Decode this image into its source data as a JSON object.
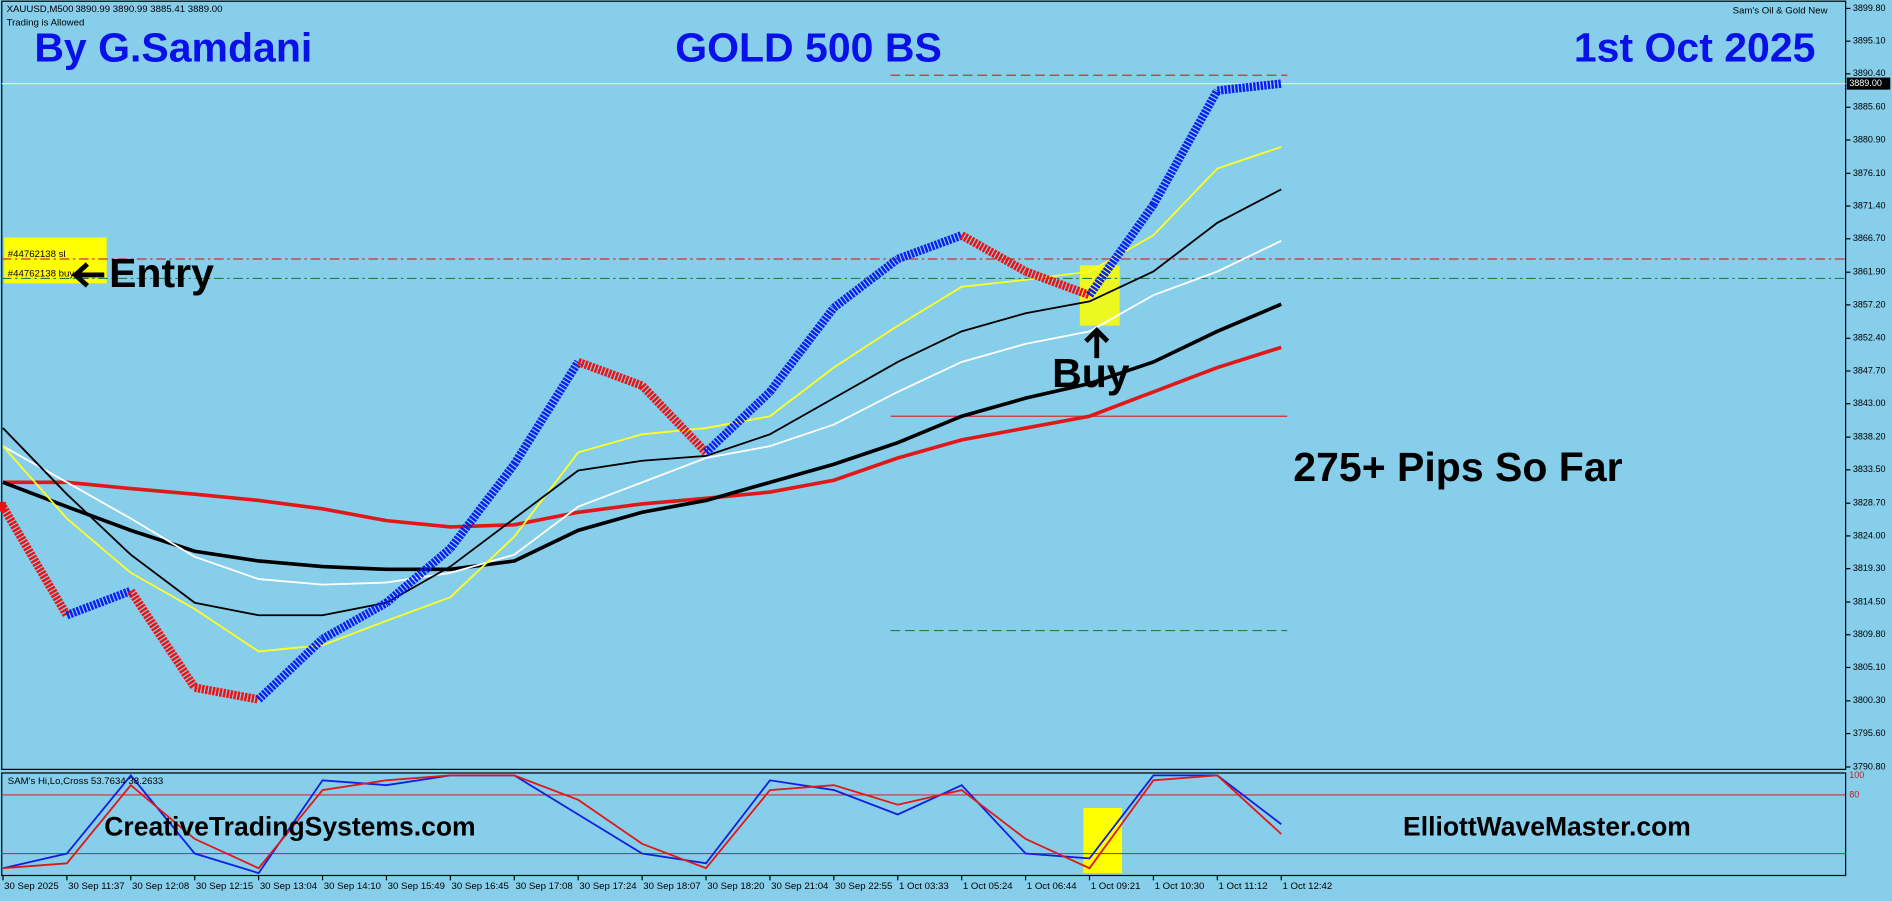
{
  "chart_data": {
    "type": "bar",
    "title": "GOLD 500 BS",
    "header": {
      "symbol": "XAUUSD,M500",
      "ohlc": "3890.99 3890.99 3885.41 3889.00",
      "status": "Trading is Allowed",
      "indicator": "Sam's Oil & Gold New"
    },
    "annotations": {
      "author": "By G.Samdani",
      "date": "1st Oct 2025",
      "entry": "Entry",
      "buy": "Buy",
      "result": "275+ Pips So Far",
      "site_left": "CreativeTradingSystems.com",
      "site_right": "ElliottWaveMaster.com",
      "order_sl": "#44762138 sl",
      "order_buy": "#44762138 buy"
    },
    "categories": [
      "30 Sep 2025",
      "30 Sep 11:37",
      "30 Sep 12:08",
      "30 Sep 12:15",
      "30 Sep 13:04",
      "30 Sep 14:10",
      "30 Sep 15:49",
      "30 Sep 16:45",
      "30 Sep 17:08",
      "30 Sep 17:24",
      "30 Sep 18:07",
      "30 Sep 18:20",
      "30 Sep 21:04",
      "30 Sep 22:55",
      "1 Oct 03:33",
      "1 Oct 05:24",
      "1 Oct 06:44",
      "1 Oct 09:21",
      "1 Oct 10:30",
      "1 Oct 11:12",
      "1 Oct 12:42"
    ],
    "price": {
      "up_color": "#0a1ef0",
      "down_color": "#f01010",
      "values": [
        3828.2,
        3812.6,
        3816.1,
        3802.2,
        3800.5,
        3809.2,
        3814.4,
        3822.2,
        3834.3,
        3849.0,
        3845.6,
        3836.0,
        3844.7,
        3856.8,
        3863.8,
        3867.2,
        3862.0,
        3858.6,
        3871.6,
        3888.0,
        3889.0
      ]
    },
    "series": [
      {
        "color": "#e01818",
        "width": 3,
        "values": [
          3831.7,
          3831.7,
          3830.8,
          3830.0,
          3829.1,
          3827.9,
          3826.2,
          3825.3,
          3825.6,
          3827.4,
          3828.6,
          3829.4,
          3830.3,
          3832.0,
          3835.2,
          3837.8,
          3839.5,
          3841.2,
          3844.7,
          3848.2,
          3851.1
        ]
      },
      {
        "color": "#000000",
        "width": 3,
        "values": [
          3831.7,
          3828.2,
          3824.8,
          3821.8,
          3820.4,
          3819.6,
          3819.2,
          3819.2,
          3820.4,
          3824.8,
          3827.4,
          3829.1,
          3831.7,
          3834.3,
          3837.4,
          3841.2,
          3843.8,
          3845.9,
          3849.0,
          3853.4,
          3857.3
        ]
      },
      {
        "color": "#ffffff",
        "width": 1.5,
        "values": [
          3836.9,
          3831.7,
          3826.5,
          3821.0,
          3817.8,
          3817.0,
          3817.3,
          3818.7,
          3821.3,
          3828.2,
          3831.7,
          3835.2,
          3836.9,
          3840.0,
          3844.7,
          3849.0,
          3851.6,
          3853.4,
          3858.6,
          3862.0,
          3866.4
        ]
      },
      {
        "color": "#ffff20",
        "width": 1.5,
        "values": [
          3836.9,
          3826.5,
          3818.7,
          3813.5,
          3807.4,
          3808.3,
          3811.8,
          3815.2,
          3823.9,
          3836.0,
          3838.6,
          3839.5,
          3841.2,
          3848.2,
          3854.2,
          3859.8,
          3860.8,
          3862.0,
          3867.2,
          3876.8,
          3879.9
        ]
      },
      {
        "color": "#000000",
        "width": 1.5,
        "values": [
          3839.5,
          3830.0,
          3821.3,
          3814.4,
          3812.6,
          3812.6,
          3814.4,
          3819.6,
          3826.5,
          3833.4,
          3834.8,
          3835.5,
          3838.6,
          3843.8,
          3849.0,
          3853.4,
          3856.0,
          3857.7,
          3862.0,
          3869.0,
          3873.8
        ]
      }
    ],
    "current_price": {
      "value": 3889.0,
      "label": "3889.00",
      "color": "#ffff40"
    },
    "levels": [
      {
        "value": 3890.2,
        "color": "#d03030"
      },
      {
        "value": 3863.8,
        "color": "#d03030"
      },
      {
        "value": 3861.0,
        "color": "#208040"
      },
      {
        "value": 3841.2,
        "color": "#d03030"
      },
      {
        "value": 3810.4,
        "color": "#208040"
      }
    ],
    "ylim": [
      3790.8,
      3899.8
    ],
    "yticks": [
      {
        "value": 3899.8,
        "label": "3899.80"
      },
      {
        "value": 3895.1,
        "label": "3895.10"
      },
      {
        "value": 3890.4,
        "label": "3890.40"
      },
      {
        "value": 3885.6,
        "label": "3885.60"
      },
      {
        "value": 3880.9,
        "label": "3880.90"
      },
      {
        "value": 3876.1,
        "label": "3876.10"
      },
      {
        "value": 3871.4,
        "label": "3871.40"
      },
      {
        "value": 3866.7,
        "label": "3866.70"
      },
      {
        "value": 3861.9,
        "label": "3861.90"
      },
      {
        "value": 3857.2,
        "label": "3857.20"
      },
      {
        "value": 3852.4,
        "label": "3852.40"
      },
      {
        "value": 3847.7,
        "label": "3847.70"
      },
      {
        "value": 3843.0,
        "label": "3843.00"
      },
      {
        "value": 3838.2,
        "label": "3838.20"
      },
      {
        "value": 3833.5,
        "label": "3833.50"
      },
      {
        "value": 3828.7,
        "label": "3828.70"
      },
      {
        "value": 3824.0,
        "label": "3824.00"
      },
      {
        "value": 3819.3,
        "label": "3819.30"
      },
      {
        "value": 3814.5,
        "label": "3814.50"
      },
      {
        "value": 3809.8,
        "label": "3809.80"
      },
      {
        "value": 3805.1,
        "label": "3805.10"
      },
      {
        "value": 3800.3,
        "label": "3800.30"
      },
      {
        "value": 3795.6,
        "label": "3795.60"
      },
      {
        "value": 3790.8,
        "label": "3790.80"
      }
    ],
    "oscillator": {
      "title": "SAM's Hi,Lo,Cross 53.7634 38.2633",
      "ylim": [
        0,
        100
      ],
      "yticks": [
        100,
        80
      ],
      "levels": [
        80,
        20
      ],
      "series": [
        {
          "color": "#1020e0",
          "values": [
            5,
            20,
            100,
            20,
            0,
            95,
            90,
            100,
            100,
            60,
            20,
            10,
            95,
            85,
            60,
            90,
            20,
            15,
            100,
            100,
            50
          ]
        },
        {
          "color": "#e01818",
          "values": [
            5,
            10,
            90,
            35,
            5,
            85,
            95,
            100,
            100,
            75,
            30,
            5,
            85,
            90,
            70,
            85,
            35,
            5,
            95,
            100,
            40
          ]
        }
      ]
    }
  }
}
